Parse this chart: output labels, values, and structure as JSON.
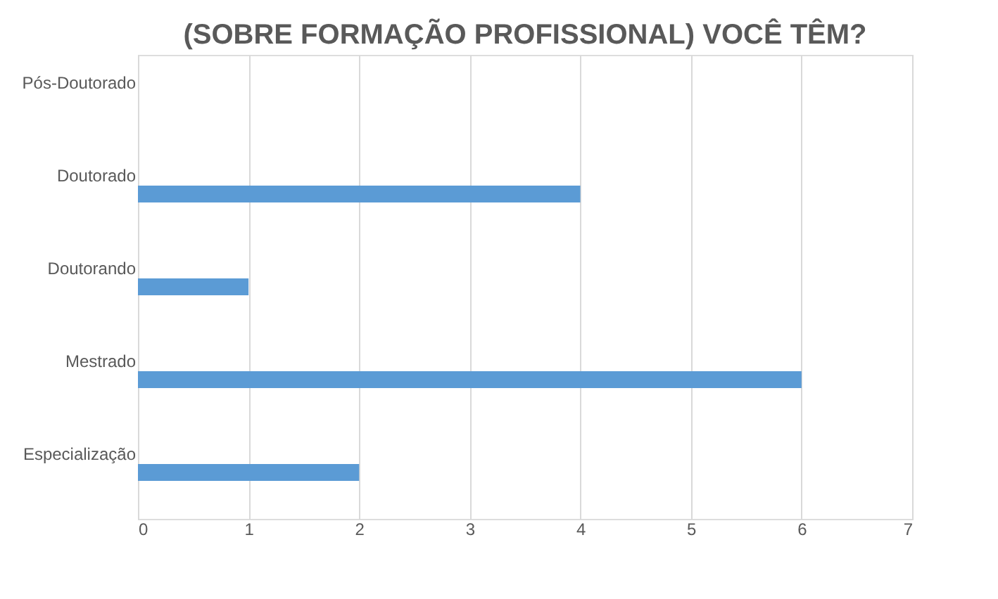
{
  "chart_data": {
    "type": "bar",
    "orientation": "horizontal",
    "title": "(SOBRE FORMAÇÃO PROFISSIONAL) VOCÊ TÊM?",
    "categories": [
      "Pós-Doutorado",
      "Doutorado",
      "Doutorando",
      "Mestrado",
      "Especialização"
    ],
    "values": [
      0,
      4,
      1,
      6,
      2
    ],
    "color": "#5b9bd5",
    "xlim": [
      0,
      7
    ],
    "xticks": [
      0,
      1,
      2,
      3,
      4,
      5,
      6,
      7
    ],
    "grid": "x"
  }
}
